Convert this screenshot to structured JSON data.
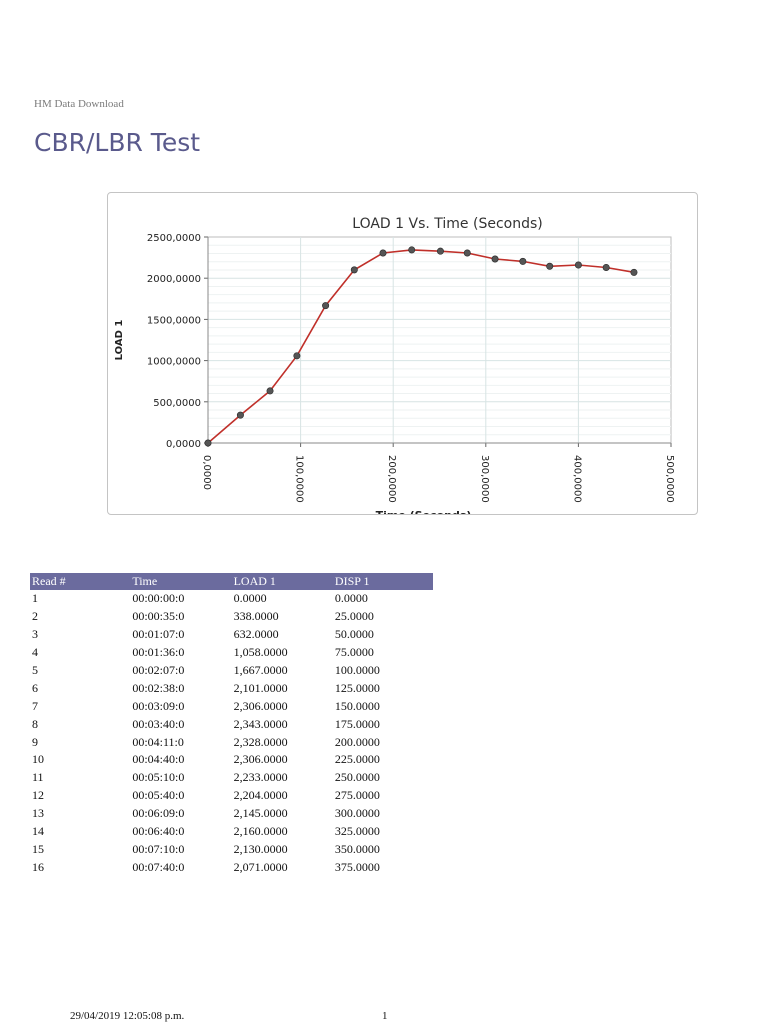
{
  "header": {
    "subtitle": "HM Data Download",
    "title": "CBR/LBR Test"
  },
  "chart_data": {
    "type": "line",
    "title": "LOAD 1 Vs. Time (Seconds)",
    "xlabel": "Time (Seconds)",
    "ylabel": "LOAD 1",
    "xlim": [
      0,
      500
    ],
    "ylim": [
      0,
      2500
    ],
    "x_ticks": [
      "0,0000",
      "100,0000",
      "200,0000",
      "300,0000",
      "400,0000",
      "500,0000"
    ],
    "y_ticks": [
      "0,0000",
      "500,0000",
      "1000,0000",
      "1500,0000",
      "2000,0000",
      "2500,0000"
    ],
    "grid": true,
    "line_color": "#c0302a",
    "marker_color": "#555555",
    "x": [
      0,
      35,
      67,
      96,
      127,
      158,
      189,
      220,
      251,
      280,
      310,
      340,
      369,
      400,
      430,
      460
    ],
    "series": [
      {
        "values": [
          0,
          338,
          632,
          1058,
          1667,
          2101,
          2306,
          2343,
          2328,
          2306,
          2233,
          2204,
          2145,
          2160,
          2130,
          2071
        ]
      }
    ]
  },
  "table": {
    "headers": [
      "Read #",
      "Time",
      "LOAD 1",
      "DISP 1"
    ],
    "header_color": "#6b6b9e",
    "rows": [
      [
        "1",
        "00:00:00:0",
        "0.0000",
        "0.0000"
      ],
      [
        "2",
        "00:00:35:0",
        "338.0000",
        "25.0000"
      ],
      [
        "3",
        "00:01:07:0",
        "632.0000",
        "50.0000"
      ],
      [
        "4",
        "00:01:36:0",
        "1,058.0000",
        "75.0000"
      ],
      [
        "5",
        "00:02:07:0",
        "1,667.0000",
        "100.0000"
      ],
      [
        "6",
        "00:02:38:0",
        "2,101.0000",
        "125.0000"
      ],
      [
        "7",
        "00:03:09:0",
        "2,306.0000",
        "150.0000"
      ],
      [
        "8",
        "00:03:40:0",
        "2,343.0000",
        "175.0000"
      ],
      [
        "9",
        "00:04:11:0",
        "2,328.0000",
        "200.0000"
      ],
      [
        "10",
        "00:04:40:0",
        "2,306.0000",
        "225.0000"
      ],
      [
        "11",
        "00:05:10:0",
        "2,233.0000",
        "250.0000"
      ],
      [
        "12",
        "00:05:40:0",
        "2,204.0000",
        "275.0000"
      ],
      [
        "13",
        "00:06:09:0",
        "2,145.0000",
        "300.0000"
      ],
      [
        "14",
        "00:06:40:0",
        "2,160.0000",
        "325.0000"
      ],
      [
        "15",
        "00:07:10:0",
        "2,130.0000",
        "350.0000"
      ],
      [
        "16",
        "00:07:40:0",
        "2,071.0000",
        "375.0000"
      ]
    ]
  },
  "footer": {
    "datetime": "29/04/2019 12:05:08 p.m.",
    "page": "1"
  }
}
